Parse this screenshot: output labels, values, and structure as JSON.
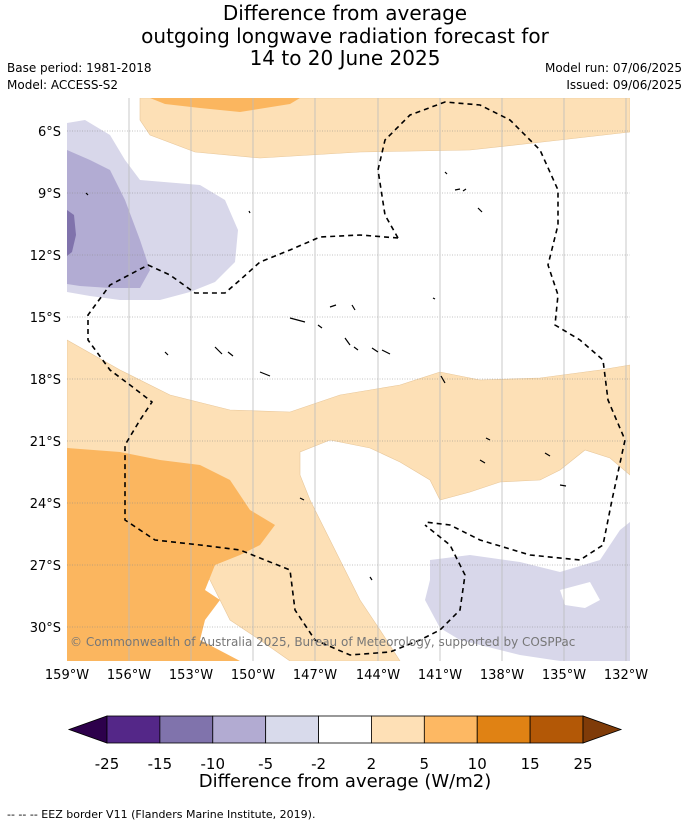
{
  "header": {
    "title_lines": [
      "Difference from average",
      "outgoing longwave radiation forecast for",
      "14 to 20 June 2025"
    ],
    "base_period": "Base period: 1981-2018",
    "model": "Model: ACCESS-S2",
    "model_run": "Model run: 07/06/2025",
    "issued": "Issued: 09/06/2025"
  },
  "map": {
    "lat_labels": [
      "6°S",
      "9°S",
      "12°S",
      "15°S",
      "18°S",
      "21°S",
      "24°S",
      "27°S",
      "30°S"
    ],
    "lon_labels": [
      "159°W",
      "156°W",
      "153°W",
      "150°W",
      "147°W",
      "144°W",
      "141°W",
      "138°W",
      "135°W",
      "132°W"
    ],
    "copyright": "© Commonwealth of Australia 2025, Bureau of Meteorology, supported by COSPPac",
    "colors": {
      "orange_light": "#fde0b6",
      "orange_mid": "#fbb65f",
      "purple_light": "#d8d7ea",
      "purple_mid": "#b2acd3",
      "purple_dark": "#8073ac"
    }
  },
  "colorbar": {
    "labels": [
      "-25",
      "-15",
      "-10",
      "-5",
      "-2",
      "2",
      "5",
      "10",
      "15",
      "25"
    ],
    "colors": [
      "#542788",
      "#8073ac",
      "#b2abd2",
      "#d8daeb",
      "#ffffff",
      "#fee0b6",
      "#fdb863",
      "#e08214",
      "#b35806"
    ],
    "under_color": "#2d004b",
    "over_color": "#7f3b08",
    "title": "Difference from average (W/m2)"
  },
  "footer": {
    "legend_text": "--  --  -- EEZ border V11 (Flanders Marine Institute, 2019)."
  }
}
